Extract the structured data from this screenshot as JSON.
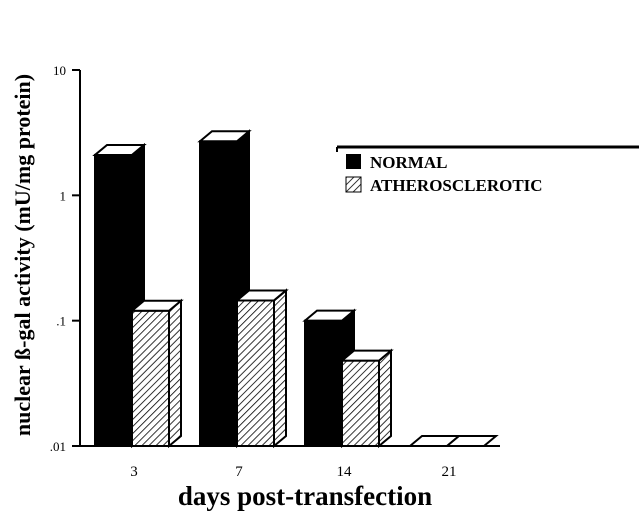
{
  "chart_data": {
    "type": "bar",
    "style": "3d",
    "yscale": "log",
    "ylim": [
      0.01,
      10
    ],
    "yticks": [
      {
        "value": 10,
        "label": "10"
      },
      {
        "value": 1,
        "label": "1"
      },
      {
        "value": 0.1,
        "label": ".1"
      },
      {
        "value": 0.01,
        "label": ".01"
      }
    ],
    "categories": [
      "3",
      "7",
      "14",
      "21"
    ],
    "series": [
      {
        "name": "NORMAL",
        "color": "#000000",
        "pattern": "solid",
        "values": [
          2.1,
          2.7,
          0.1,
          0.01
        ]
      },
      {
        "name": "ATHEROSCLEROTIC",
        "color": "#000000",
        "pattern": "hatched",
        "values": [
          0.12,
          0.145,
          0.048,
          0.01
        ]
      }
    ],
    "xlabel": "days post-transfection",
    "ylabel": "nuclear ß-gal activity (mU/mg protein)",
    "legend": {
      "position": "right"
    },
    "grid": false
  }
}
